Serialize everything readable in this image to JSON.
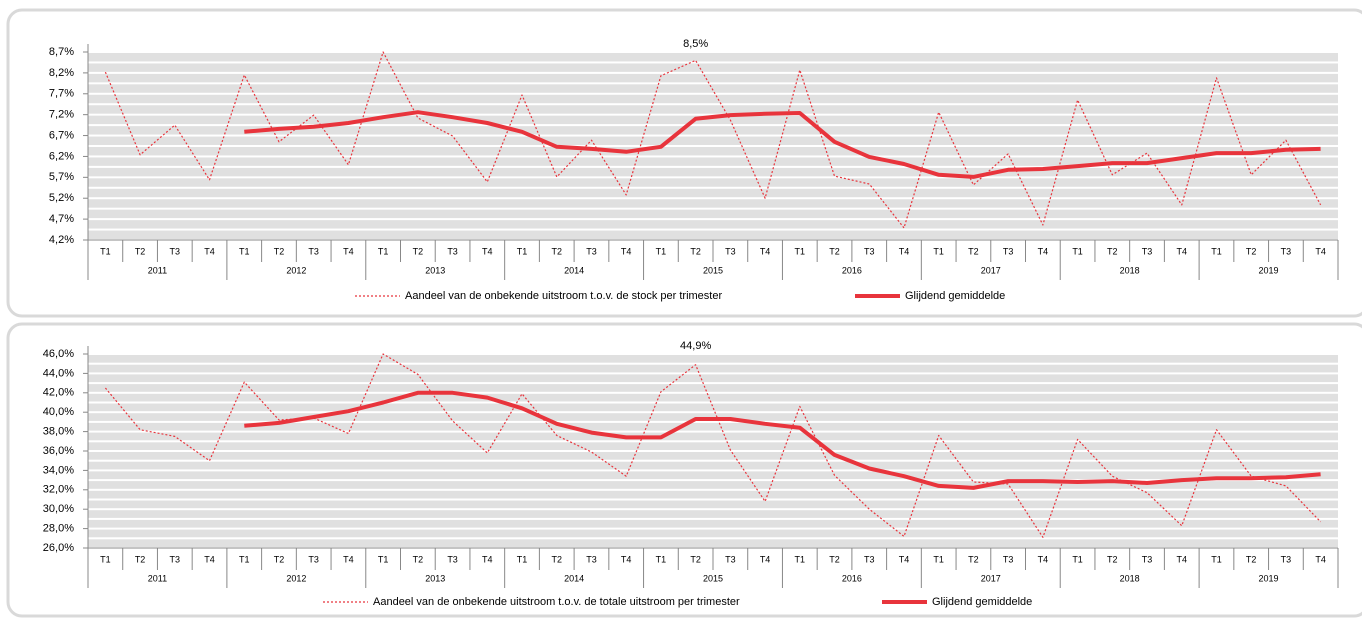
{
  "chart_data": [
    {
      "type": "line",
      "categories": [
        "T1",
        "T2",
        "T3",
        "T4",
        "T1",
        "T2",
        "T3",
        "T4",
        "T1",
        "T2",
        "T3",
        "T4",
        "T1",
        "T2",
        "T3",
        "T4",
        "T1",
        "T2",
        "T3",
        "T4",
        "T1",
        "T2",
        "T3",
        "T4",
        "T1",
        "T2",
        "T3",
        "T4",
        "T1",
        "T2",
        "T3",
        "T4",
        "T1",
        "T2",
        "T3",
        "T4"
      ],
      "years": [
        "2011",
        "2012",
        "2013",
        "2014",
        "2015",
        "2016",
        "2017",
        "2018",
        "2019"
      ],
      "ylim": [
        4.2,
        8.7
      ],
      "yticks": [
        {
          "value": 4.2,
          "label": "4,2%"
        },
        {
          "value": 4.7,
          "label": "4,7%"
        },
        {
          "value": 5.2,
          "label": "5,2%"
        },
        {
          "value": 5.7,
          "label": "5,7%"
        },
        {
          "value": 6.2,
          "label": "6,2%"
        },
        {
          "value": 6.7,
          "label": "6,7%"
        },
        {
          "value": 7.2,
          "label": "7,2%"
        },
        {
          "value": 7.7,
          "label": "7,7%"
        },
        {
          "value": 8.2,
          "label": "8,2%"
        },
        {
          "value": 8.7,
          "label": "8,7%"
        }
      ],
      "grid": true,
      "series": [
        {
          "name": "Aandeel van de onbekende uitstroom  t.o.v. de stock per trimester",
          "color": "#e8343c",
          "style": "dotted",
          "values": [
            8.22,
            6.24,
            6.95,
            5.64,
            8.15,
            6.55,
            7.19,
            6.0,
            8.7,
            7.12,
            6.69,
            5.59,
            7.67,
            5.71,
            6.59,
            5.28,
            8.13,
            8.5,
            7.07,
            5.2,
            8.27,
            5.73,
            5.54,
            4.49,
            7.26,
            5.52,
            6.26,
            4.56,
            7.55,
            5.76,
            6.28,
            5.04,
            8.08,
            5.76,
            6.59,
            5.04
          ],
          "value_labels": [
            null,
            null,
            null,
            null,
            null,
            null,
            null,
            null,
            null,
            null,
            null,
            null,
            null,
            null,
            null,
            null,
            null,
            "8,5%",
            null,
            null,
            null,
            null,
            null,
            null,
            null,
            null,
            null,
            null,
            null,
            null,
            null,
            null,
            null,
            null,
            null,
            null
          ]
        },
        {
          "name": "Glijdend gemiddelde",
          "color": "#e8343c",
          "style": "solid",
          "values": [
            null,
            null,
            null,
            null,
            6.79,
            6.86,
            6.91,
            7.0,
            7.14,
            7.26,
            7.14,
            7.0,
            6.79,
            6.43,
            6.38,
            6.31,
            6.43,
            7.1,
            7.19,
            7.22,
            7.24,
            6.55,
            6.19,
            6.02,
            5.76,
            5.71,
            5.88,
            5.9,
            5.97,
            6.04,
            6.04,
            6.16,
            6.28,
            6.28,
            6.36,
            6.38
          ]
        }
      ]
    },
    {
      "type": "line",
      "categories": [
        "T1",
        "T2",
        "T3",
        "T4",
        "T1",
        "T2",
        "T3",
        "T4",
        "T1",
        "T2",
        "T3",
        "T4",
        "T1",
        "T2",
        "T3",
        "T4",
        "T1",
        "T2",
        "T3",
        "T4",
        "T1",
        "T2",
        "T3",
        "T4",
        "T1",
        "T2",
        "T3",
        "T4",
        "T1",
        "T2",
        "T3",
        "T4",
        "T1",
        "T2",
        "T3",
        "T4"
      ],
      "years": [
        "2011",
        "2012",
        "2013",
        "2014",
        "2015",
        "2016",
        "2017",
        "2018",
        "2019"
      ],
      "ylim": [
        26,
        46
      ],
      "yticks": [
        {
          "value": 26,
          "label": "26,0%"
        },
        {
          "value": 28,
          "label": "28,0%"
        },
        {
          "value": 30,
          "label": "30,0%"
        },
        {
          "value": 32,
          "label": "32,0%"
        },
        {
          "value": 34,
          "label": "34,0%"
        },
        {
          "value": 36,
          "label": "36,0%"
        },
        {
          "value": 38,
          "label": "38,0%"
        },
        {
          "value": 40,
          "label": "40,0%"
        },
        {
          "value": 42,
          "label": "42,0%"
        },
        {
          "value": 44,
          "label": "44,0%"
        },
        {
          "value": 46,
          "label": "46,0%"
        }
      ],
      "grid": true,
      "series": [
        {
          "name": "Aandeel van de onbekende uitstroom  t.o.v. de totale uitstroom per trimester",
          "color": "#e8343c",
          "style": "dotted",
          "values": [
            42.5,
            38.2,
            37.5,
            35.0,
            43.1,
            39.2,
            39.4,
            37.8,
            46.0,
            43.9,
            39.1,
            35.8,
            41.9,
            37.6,
            35.9,
            33.4,
            42.1,
            44.9,
            36.1,
            30.8,
            40.6,
            33.5,
            30.0,
            27.2,
            37.6,
            32.8,
            32.6,
            27.1,
            37.2,
            33.4,
            31.7,
            28.3,
            38.2,
            33.4,
            32.4,
            28.7
          ],
          "value_labels": [
            null,
            null,
            null,
            null,
            null,
            null,
            null,
            null,
            null,
            null,
            null,
            null,
            null,
            null,
            null,
            null,
            null,
            "44,9%",
            null,
            null,
            null,
            null,
            null,
            null,
            null,
            null,
            null,
            null,
            null,
            null,
            null,
            null,
            null,
            null,
            null,
            null
          ]
        },
        {
          "name": "Glijdend gemiddelde",
          "color": "#e8343c",
          "style": "solid",
          "values": [
            null,
            null,
            null,
            null,
            38.6,
            38.9,
            39.5,
            40.1,
            41.0,
            42.0,
            42.0,
            41.5,
            40.4,
            38.8,
            37.9,
            37.4,
            37.4,
            39.3,
            39.3,
            38.8,
            38.4,
            35.6,
            34.2,
            33.4,
            32.4,
            32.2,
            32.9,
            32.9,
            32.8,
            32.9,
            32.7,
            33.0,
            33.2,
            33.2,
            33.3,
            33.6
          ]
        }
      ]
    }
  ]
}
